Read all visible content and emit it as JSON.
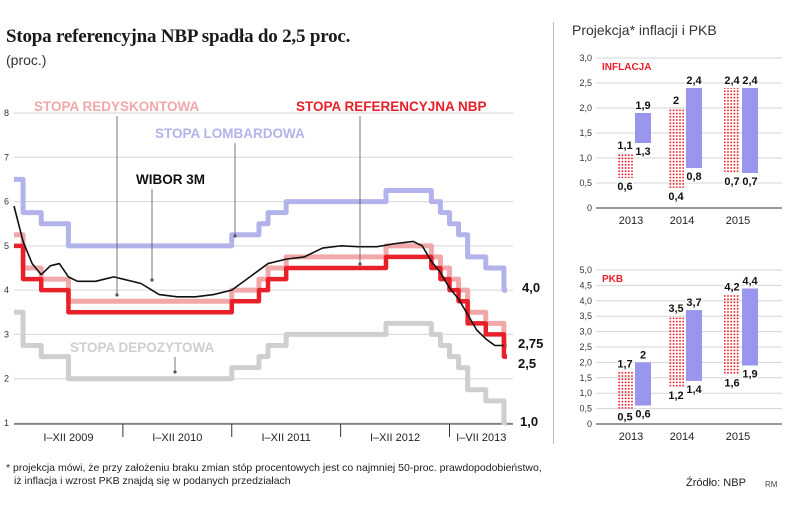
{
  "main_title": "Stopa referencyjna NBP spadła do 2,5 proc.",
  "main_subtitle": "(proc.)",
  "right_title": "Projekcja* inflacji i PKB",
  "footnote_line1": "* projekcja mówi, że przy założeniu braku zmian stóp procentowych jest co najmniej 50-proc. prawdopodobieństwo,",
  "footnote_line2": "iż inflacja i wzrost PKB znajdą się w podanych przedziałach",
  "source": "Źródło: NBP",
  "signature": "RM",
  "colors": {
    "redyskontowa": "#f0a8a8",
    "lombardowa": "#b3b3ec",
    "referencyjna": "#e8202a",
    "wibor": "#111111",
    "depozytowa": "#cfcfcf",
    "proj_dots": "#e8202a",
    "proj_solid": "#9a96ee"
  },
  "chart_data": [
    {
      "type": "line",
      "ylim": [
        1,
        8
      ],
      "y_ticks": [
        "1",
        "2",
        "3",
        "4",
        "5",
        "6",
        "7",
        "8"
      ],
      "x_ticks": [
        "I–XII 2009",
        "I–XII 2010",
        "I–XII 2011",
        "I–XII 2012",
        "I–VII 2013"
      ],
      "x_range": [
        "2009-01",
        "2013-07"
      ],
      "series": [
        {
          "name": "STOPA LOMBARDOWA",
          "style": "step",
          "x": [
            "2009-01",
            "2009-02",
            "2009-04",
            "2009-07",
            "2011-01",
            "2011-04",
            "2011-05",
            "2011-07",
            "2012-06",
            "2012-11",
            "2012-12",
            "2013-01",
            "2013-02",
            "2013-03",
            "2013-05",
            "2013-07"
          ],
          "values": [
            6.5,
            5.75,
            5.5,
            5.0,
            5.25,
            5.5,
            5.75,
            6.0,
            6.25,
            6.0,
            5.75,
            5.5,
            5.25,
            4.75,
            4.5,
            4.0
          ],
          "end_label": "4,0"
        },
        {
          "name": "STOPA REDYSKONTOWA",
          "style": "step",
          "x": [
            "2009-01",
            "2009-02",
            "2009-04",
            "2009-07",
            "2011-01",
            "2011-04",
            "2011-05",
            "2011-07",
            "2012-06",
            "2012-11",
            "2012-12",
            "2013-01",
            "2013-02",
            "2013-03",
            "2013-05",
            "2013-07"
          ],
          "values": [
            5.25,
            4.5,
            4.25,
            3.75,
            4.0,
            4.25,
            4.5,
            4.75,
            5.0,
            4.75,
            4.5,
            4.25,
            4.0,
            3.5,
            3.25,
            2.75
          ],
          "end_label": "2,75"
        },
        {
          "name": "STOPA REFERENCYJNA NBP",
          "style": "step",
          "x": [
            "2009-01",
            "2009-02",
            "2009-04",
            "2009-07",
            "2011-01",
            "2011-04",
            "2011-05",
            "2011-07",
            "2012-06",
            "2012-11",
            "2012-12",
            "2013-01",
            "2013-02",
            "2013-03",
            "2013-05",
            "2013-07"
          ],
          "values": [
            5.0,
            4.25,
            4.0,
            3.5,
            3.75,
            4.0,
            4.25,
            4.5,
            4.75,
            4.5,
            4.25,
            4.0,
            3.75,
            3.25,
            3.0,
            2.5
          ],
          "end_label": "2,5"
        },
        {
          "name": "STOPA DEPOZYTOWA",
          "style": "step",
          "x": [
            "2009-01",
            "2009-02",
            "2009-04",
            "2009-07",
            "2011-01",
            "2011-04",
            "2011-05",
            "2011-07",
            "2012-06",
            "2012-11",
            "2012-12",
            "2013-01",
            "2013-02",
            "2013-03",
            "2013-05",
            "2013-07"
          ],
          "values": [
            3.5,
            2.75,
            2.5,
            2.0,
            2.25,
            2.5,
            2.75,
            3.0,
            3.25,
            3.0,
            2.75,
            2.5,
            2.25,
            1.75,
            1.5,
            1.0
          ],
          "end_label": "1,0"
        },
        {
          "name": "WIBOR 3M",
          "style": "line",
          "x": [
            "2009-01",
            "2009-02",
            "2009-03",
            "2009-04",
            "2009-05",
            "2009-06",
            "2009-07",
            "2009-08",
            "2009-09",
            "2009-10",
            "2009-11",
            "2009-12",
            "2010-01",
            "2010-03",
            "2010-05",
            "2010-07",
            "2010-09",
            "2010-11",
            "2011-01",
            "2011-03",
            "2011-05",
            "2011-07",
            "2011-09",
            "2011-11",
            "2012-01",
            "2012-03",
            "2012-05",
            "2012-07",
            "2012-09",
            "2012-10",
            "2012-11",
            "2012-12",
            "2013-01",
            "2013-02",
            "2013-03",
            "2013-04",
            "2013-05",
            "2013-06",
            "2013-07"
          ],
          "values": [
            5.9,
            5.1,
            4.6,
            4.35,
            4.55,
            4.6,
            4.3,
            4.2,
            4.2,
            4.2,
            4.25,
            4.3,
            4.25,
            4.15,
            3.9,
            3.85,
            3.85,
            3.9,
            4.0,
            4.3,
            4.6,
            4.7,
            4.75,
            4.95,
            5.0,
            4.98,
            4.98,
            5.05,
            5.1,
            5.0,
            4.65,
            4.4,
            4.05,
            3.8,
            3.45,
            3.1,
            2.9,
            2.75,
            2.75
          ]
        }
      ]
    },
    {
      "type": "bar",
      "subtype": "range",
      "label": "INFLACJA",
      "ylim": [
        0,
        3.0
      ],
      "y_ticks": [
        "0",
        "0,5",
        "1,0",
        "1,5",
        "2,0",
        "2,5",
        "3,0"
      ],
      "categories": [
        "2013",
        "2014",
        "2015"
      ],
      "ranges": [
        {
          "category": "2013",
          "dotted": [
            0.6,
            1.1
          ],
          "solid": [
            1.3,
            1.9
          ],
          "labels": {
            "dotted_low": "0,6",
            "dotted_high": "1,1",
            "solid_low": "1,3",
            "solid_high": "1,9"
          }
        },
        {
          "category": "2014",
          "dotted": [
            0.4,
            2.0
          ],
          "solid": [
            0.8,
            2.4
          ],
          "labels": {
            "dotted_low": "0,4",
            "dotted_high": "2",
            "solid_low": "0,8",
            "solid_high": "2,4"
          }
        },
        {
          "category": "2015",
          "dotted": [
            0.7,
            2.4
          ],
          "solid": [
            0.7,
            2.4
          ],
          "labels": {
            "dotted_low": "0,7",
            "dotted_high": "2,4",
            "solid_low": "0,7",
            "solid_high": "2,4"
          }
        }
      ]
    },
    {
      "type": "bar",
      "subtype": "range",
      "label": "PKB",
      "ylim": [
        0,
        5.0
      ],
      "y_ticks": [
        "0",
        "0,5",
        "1,0",
        "1,5",
        "2,0",
        "2,5",
        "3,0",
        "3,5",
        "4,0",
        "4,5",
        "5,0"
      ],
      "categories": [
        "2013",
        "2014",
        "2015"
      ],
      "ranges": [
        {
          "category": "2013",
          "dotted": [
            0.5,
            1.7
          ],
          "solid": [
            0.6,
            2.0
          ],
          "labels": {
            "dotted_low": "0,5",
            "dotted_high": "1,7",
            "solid_low": "0,6",
            "solid_high": "2"
          }
        },
        {
          "category": "2014",
          "dotted": [
            1.2,
            3.5
          ],
          "solid": [
            1.4,
            3.7
          ],
          "labels": {
            "dotted_low": "1,2",
            "dotted_high": "3,5",
            "solid_low": "1,4",
            "solid_high": "3,7"
          }
        },
        {
          "category": "2015",
          "dotted": [
            1.6,
            4.2
          ],
          "solid": [
            1.9,
            4.4
          ],
          "labels": {
            "dotted_low": "1,6",
            "dotted_high": "4,2",
            "solid_low": "1,9",
            "solid_high": "4,4"
          }
        }
      ]
    }
  ]
}
